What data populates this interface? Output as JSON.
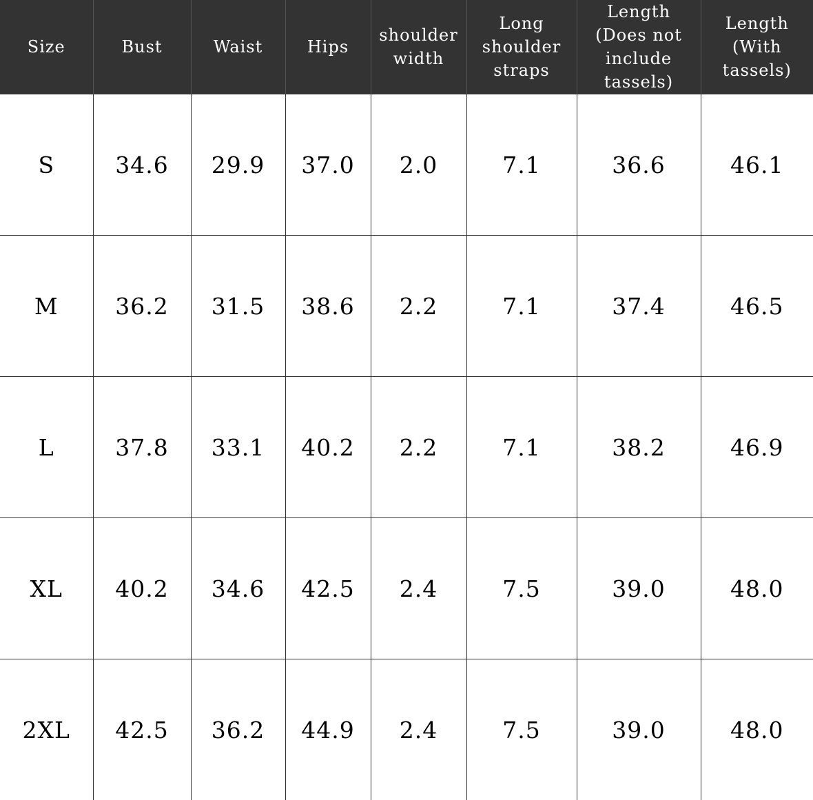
{
  "chart_data": {
    "type": "table",
    "columns": [
      "Size",
      "Bust",
      "Waist",
      "Hips",
      "shoulder\nwidth",
      "Long\nshoulder\nstraps",
      "Length\n(Does not\ninclude\ntassels)",
      "Length\n(With\ntassels)"
    ],
    "rows": [
      [
        "S",
        "34.6",
        "29.9",
        "37.0",
        "2.0",
        "7.1",
        "36.6",
        "46.1"
      ],
      [
        "M",
        "36.2",
        "31.5",
        "38.6",
        "2.2",
        "7.1",
        "37.4",
        "46.5"
      ],
      [
        "L",
        "37.8",
        "33.1",
        "40.2",
        "2.2",
        "7.1",
        "38.2",
        "46.9"
      ],
      [
        "XL",
        "40.2",
        "34.6",
        "42.5",
        "2.4",
        "7.5",
        "39.0",
        "48.0"
      ],
      [
        "2XL",
        "42.5",
        "36.2",
        "44.9",
        "2.4",
        "7.5",
        "39.0",
        "48.0"
      ]
    ],
    "colors": {
      "header_background": "#333333",
      "header_text": "#ffffff",
      "cell_background": "#ffffff",
      "cell_text": "#000000",
      "grid": "#333333"
    }
  }
}
